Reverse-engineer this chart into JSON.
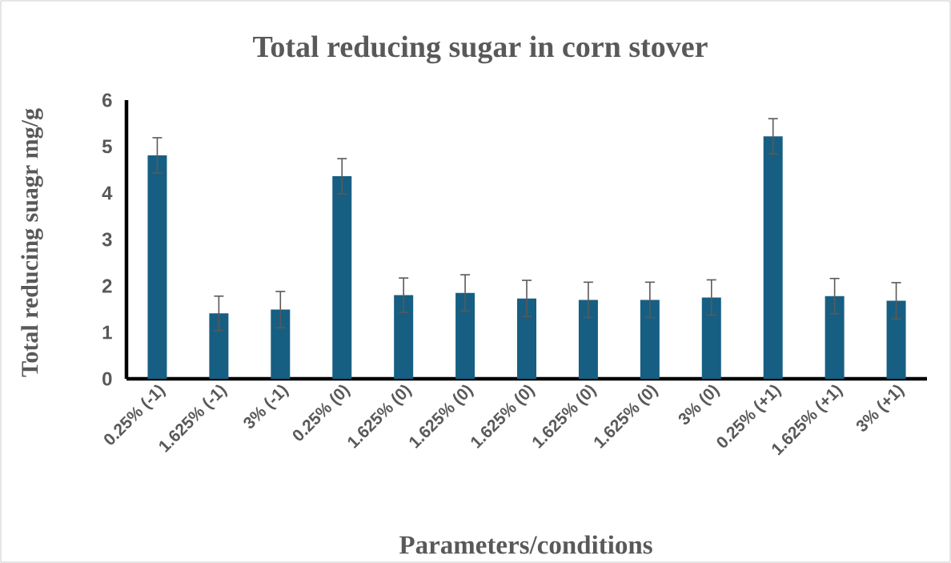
{
  "chart_data": {
    "type": "bar",
    "title": "Total reducing sugar in corn stover",
    "xlabel": "Parameters/conditions",
    "ylabel": "Total reducing suagr mg/g",
    "categories": [
      "0.25% (-1)",
      "1.625% (-1)",
      "3% (-1)",
      "0.25% (0)",
      "1.625% (0)",
      "1.625% (0)",
      "1.625% (0)",
      "1.625% (0)",
      "1.625% (0)",
      "3% (0)",
      "0.25% (+1)",
      "1.625% (+1)",
      "3% (+1)"
    ],
    "values": [
      4.81,
      1.41,
      1.49,
      4.36,
      1.8,
      1.85,
      1.73,
      1.7,
      1.7,
      1.75,
      5.22,
      1.78,
      1.68
    ],
    "errors": [
      0.38,
      0.37,
      0.39,
      0.38,
      0.37,
      0.39,
      0.39,
      0.38,
      0.38,
      0.38,
      0.38,
      0.38,
      0.39
    ],
    "color": "#175f82",
    "ylim": [
      0,
      6
    ],
    "yticks": [
      0,
      1,
      2,
      3,
      4,
      5,
      6
    ]
  }
}
